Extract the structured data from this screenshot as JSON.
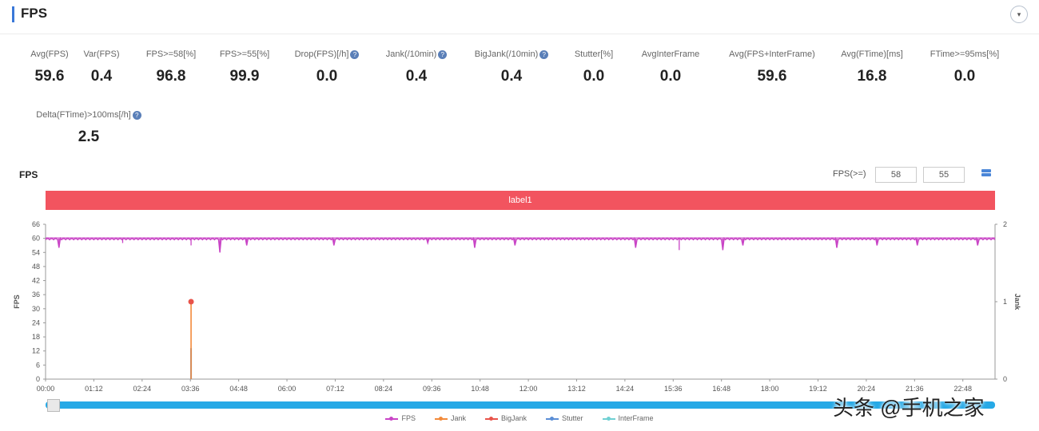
{
  "header": {
    "title": "FPS",
    "toggle_icon": "▾"
  },
  "metrics": [
    {
      "label": "Avg(FPS)",
      "value": "59.6",
      "help": false
    },
    {
      "label": "Var(FPS)",
      "value": "0.4",
      "help": false
    },
    {
      "label": "FPS>=58[%]",
      "value": "96.8",
      "help": false
    },
    {
      "label": "FPS>=55[%]",
      "value": "99.9",
      "help": false
    },
    {
      "label": "Drop(FPS)[/h]",
      "value": "0.0",
      "help": true
    },
    {
      "label": "Jank(/10min)",
      "value": "0.4",
      "help": true
    },
    {
      "label": "BigJank(/10min)",
      "value": "0.4",
      "help": true
    },
    {
      "label": "Stutter[%]",
      "value": "0.0",
      "help": false
    },
    {
      "label": "AvgInterFrame",
      "value": "0.0",
      "help": false
    },
    {
      "label": "Avg(FPS+InterFrame)",
      "value": "59.6",
      "help": false
    },
    {
      "label": "Avg(FTime)[ms]",
      "value": "16.8",
      "help": false
    },
    {
      "label": "FTime>=95ms[%]",
      "value": "0.0",
      "help": false
    },
    {
      "label": "Delta(FTime)>100ms[/h]",
      "value": "2.5",
      "help": true
    }
  ],
  "help_icon": "?",
  "chart_controls": {
    "title": "FPS",
    "threshold_label": "FPS(>=)",
    "threshold_1": "58",
    "threshold_2": "55"
  },
  "label_bar": {
    "text": "label1",
    "color": "#f2545f"
  },
  "chart_data": {
    "type": "line",
    "title": "FPS",
    "ylabel": "FPS",
    "y2label": "Jank",
    "ylim": [
      0,
      66
    ],
    "y2lim": [
      0,
      2
    ],
    "y_ticks": [
      "0",
      "6",
      "12",
      "18",
      "24",
      "30",
      "36",
      "42",
      "48",
      "54",
      "60",
      "66"
    ],
    "y2_ticks": [
      "0",
      "1",
      "2"
    ],
    "x_ticks": [
      "00:00",
      "01:12",
      "02:24",
      "03:36",
      "04:48",
      "06:00",
      "07:12",
      "08:24",
      "09:36",
      "10:48",
      "12:00",
      "13:12",
      "14:24",
      "15:36",
      "16:48",
      "18:00",
      "19:12",
      "20:24",
      "21:36",
      "22:48"
    ],
    "x_range_seconds": [
      0,
      1416
    ],
    "grid": false,
    "legend_position": "bottom",
    "series": [
      {
        "name": "FPS",
        "color": "#c944c6",
        "axis": "left",
        "baseline": 60,
        "dips": [
          [
            20,
            56
          ],
          [
            115,
            58
          ],
          [
            217,
            57
          ],
          [
            260,
            54
          ],
          [
            300,
            57
          ],
          [
            430,
            57
          ],
          [
            570,
            58
          ],
          [
            640,
            56
          ],
          [
            700,
            57
          ],
          [
            880,
            56
          ],
          [
            945,
            55
          ],
          [
            1010,
            55
          ],
          [
            1040,
            57
          ],
          [
            1180,
            56
          ],
          [
            1240,
            57
          ],
          [
            1300,
            57
          ],
          [
            1390,
            57
          ]
        ]
      },
      {
        "name": "Jank",
        "color": "#f28a3a",
        "axis": "right",
        "points": [
          [
            217,
            1.0
          ]
        ]
      },
      {
        "name": "BigJank",
        "color": "#e8534a",
        "axis": "right",
        "points": [
          [
            217,
            1.0
          ]
        ]
      },
      {
        "name": "Stutter",
        "color": "#5b8ed6",
        "axis": "right",
        "points": [
          [
            217,
            0.4
          ]
        ]
      },
      {
        "name": "InterFrame",
        "color": "#6fd0d3",
        "axis": "right",
        "points": []
      }
    ]
  },
  "watermark": "头条 @手机之家"
}
